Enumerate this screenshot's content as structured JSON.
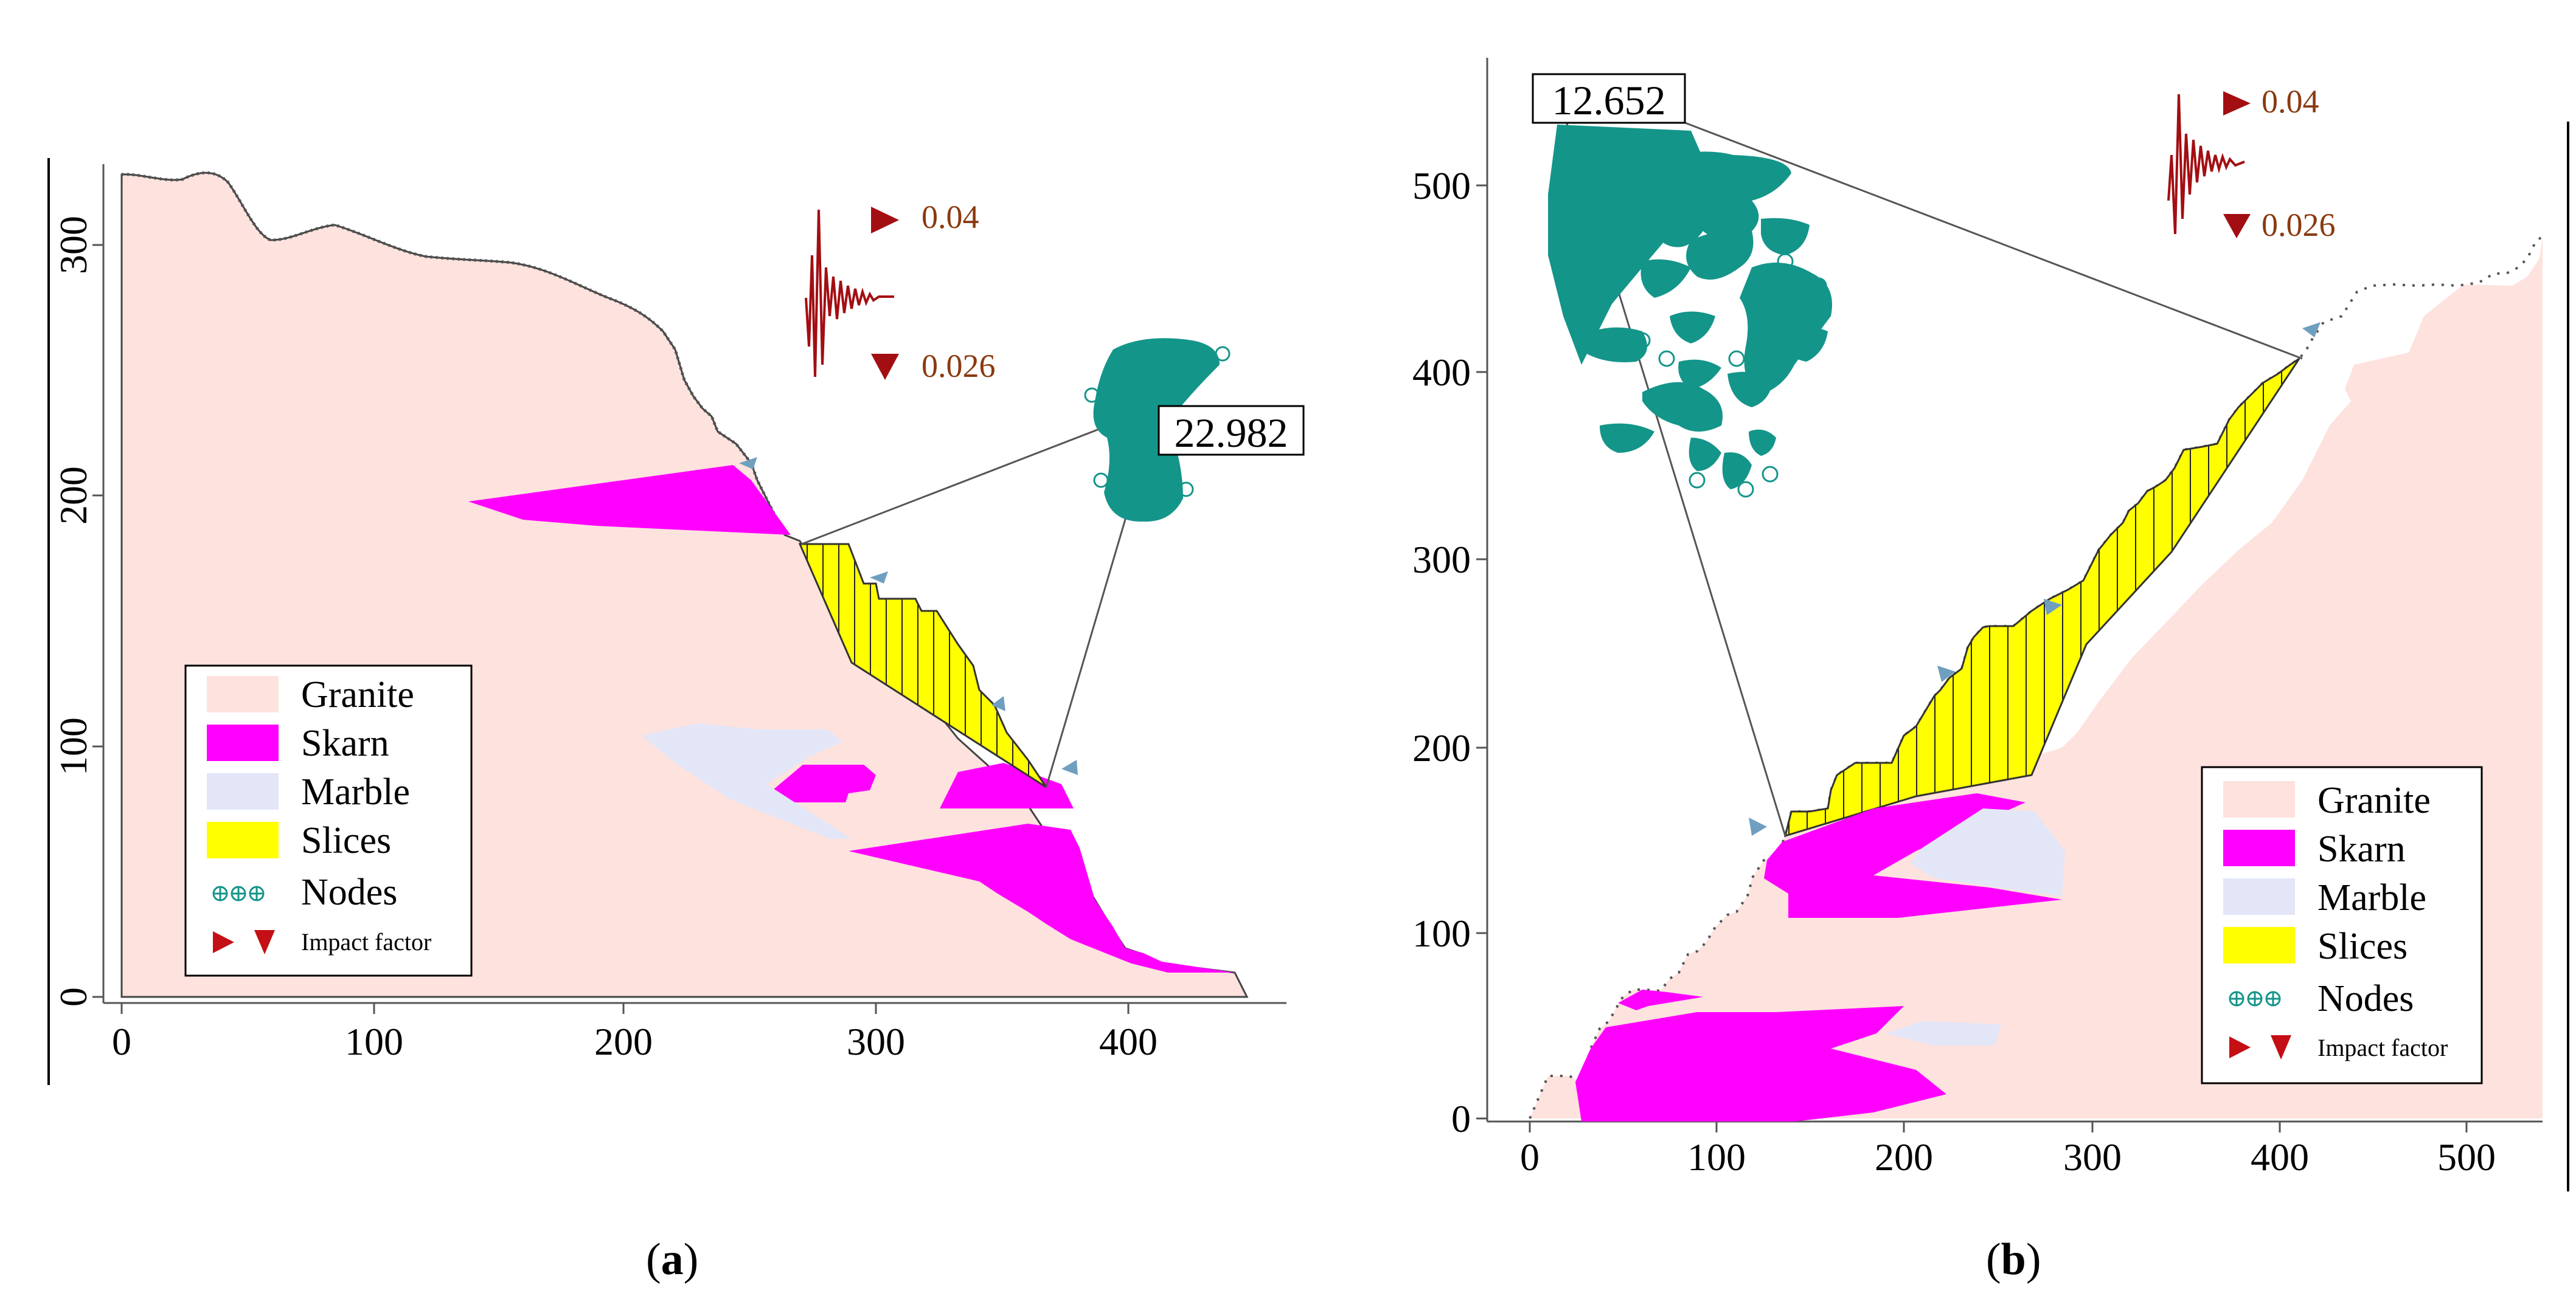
{
  "colors": {
    "granite": "#fde2de",
    "skarn": "#ff00ff",
    "marble": "#e3e6f7",
    "slices": "#ffff00",
    "nodes": "#14958a",
    "impact": "#a30e12",
    "impact_text": "#8a3a10",
    "arrow": "#6f9fbf"
  },
  "panels": [
    {
      "caption": "a",
      "x_ticks": [
        "0",
        "100",
        "200",
        "300",
        "400"
      ],
      "y_ticks": [
        "0",
        "100",
        "200",
        "300"
      ],
      "safety_factor": "22.982",
      "impact_high": "0.04",
      "impact_low": "0.026",
      "legend": [
        "Granite",
        "Skarn",
        "Marble",
        "Slices",
        "Nodes",
        "Impact factor"
      ]
    },
    {
      "caption": "b",
      "x_ticks": [
        "0",
        "100",
        "200",
        "300",
        "400",
        "500"
      ],
      "y_ticks": [
        "0",
        "100",
        "200",
        "300",
        "400",
        "500"
      ],
      "safety_factor": "12.652",
      "impact_high": "0.04",
      "impact_low": "0.026",
      "legend": [
        "Granite",
        "Skarn",
        "Marble",
        "Slices",
        "Nodes",
        "Impact factor"
      ]
    }
  ]
}
